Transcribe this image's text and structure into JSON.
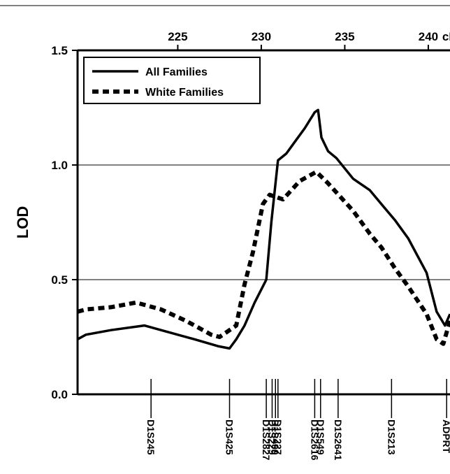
{
  "chart_data": {
    "type": "line",
    "xlabel": "cM",
    "ylabel": "LOD",
    "xlim": [
      219,
      241.3
    ],
    "ylim": [
      0,
      1.5
    ],
    "x_ticks": [
      225,
      230,
      235,
      240
    ],
    "y_ticks": [
      {
        "value": 0.0,
        "label": "0.0"
      },
      {
        "value": 0.5,
        "label": "0.5"
      },
      {
        "value": 1.0,
        "label": "1.0"
      },
      {
        "value": 1.5,
        "label": "1.5"
      }
    ],
    "grid": {
      "horizontal": [
        0.5,
        1.0
      ],
      "vertical": false
    },
    "legend_position": "top-left",
    "series": [
      {
        "name": "All Families",
        "style": "solid",
        "x": [
          219,
          219.5,
          221,
          223,
          224,
          226,
          227.4,
          228.1,
          228.5,
          229,
          229.6,
          230.3,
          230.6,
          231.0,
          231.5,
          232,
          232.6,
          233.2,
          233.4,
          233.6,
          234.0,
          234.5,
          235.5,
          236.5,
          237.3,
          238,
          238.8,
          239.9,
          240.5,
          241,
          241.3
        ],
        "y": [
          0.24,
          0.26,
          0.28,
          0.3,
          0.28,
          0.24,
          0.21,
          0.2,
          0.24,
          0.3,
          0.4,
          0.5,
          0.75,
          1.02,
          1.05,
          1.1,
          1.16,
          1.23,
          1.24,
          1.12,
          1.06,
          1.03,
          0.94,
          0.89,
          0.82,
          0.76,
          0.68,
          0.53,
          0.36,
          0.3,
          0.35
        ]
      },
      {
        "name": "White Families",
        "style": "dotted",
        "x": [
          219,
          219.5,
          221,
          222.5,
          224,
          225.5,
          227,
          227.5,
          228.5,
          229,
          229.5,
          230.1,
          230.5,
          231.3,
          232.3,
          233.3,
          234,
          235.5,
          236.5,
          237.2,
          238,
          238.8,
          239.9,
          240.5,
          240.9,
          241.3
        ],
        "y": [
          0.36,
          0.37,
          0.38,
          0.4,
          0.37,
          0.32,
          0.26,
          0.25,
          0.3,
          0.48,
          0.62,
          0.83,
          0.87,
          0.85,
          0.93,
          0.97,
          0.92,
          0.8,
          0.7,
          0.64,
          0.55,
          0.47,
          0.35,
          0.24,
          0.22,
          0.32
        ]
      }
    ],
    "markers": [
      {
        "label": "D1S245",
        "x": 223.4
      },
      {
        "label": "D1S425",
        "x": 228.1
      },
      {
        "label": "D1S2827",
        "x": 230.3
      },
      {
        "label": "D1S229",
        "x": 230.65
      },
      {
        "label": "D1S490",
        "x": 230.85
      },
      {
        "label": "D1S227",
        "x": 231.0
      },
      {
        "label": "D1S2616",
        "x": 233.2
      },
      {
        "label": "D1S549",
        "x": 233.55
      },
      {
        "label": "D1S2641",
        "x": 234.6
      },
      {
        "label": "D1S213",
        "x": 237.8
      },
      {
        "label": "ADPRT",
        "x": 241.1
      }
    ],
    "colors": {
      "line": "#000000",
      "grid": "#000000",
      "background": "#ffffff"
    }
  }
}
